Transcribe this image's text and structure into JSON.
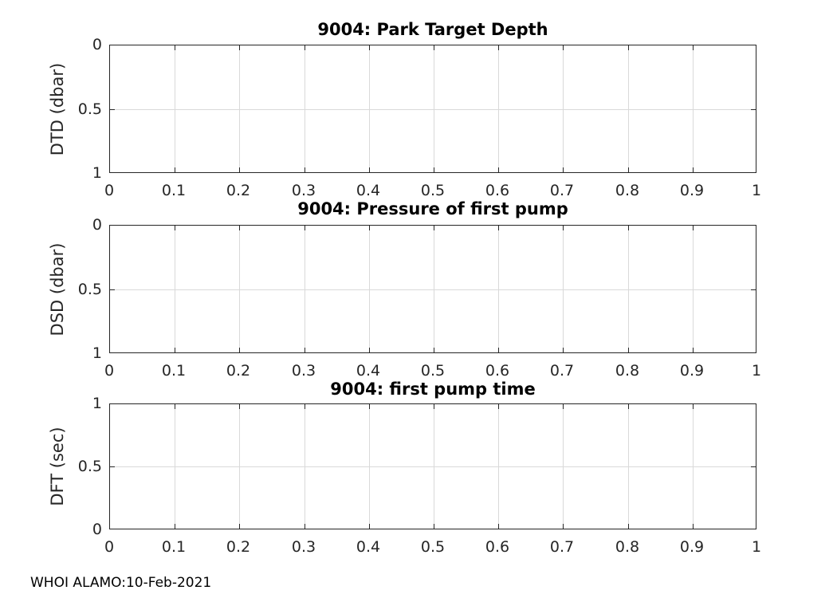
{
  "figure": {
    "background": "#ffffff",
    "footer": "WHOI ALAMO:10-Feb-2021"
  },
  "colors": {
    "axis": "#262626",
    "grid": "#d9d9d9",
    "tick_label": "#262626",
    "title": "#000000"
  },
  "chart_data": [
    {
      "type": "line",
      "title": "9004: Park Target Depth",
      "xlabel": "",
      "ylabel": "DTD (dbar)",
      "xlim": [
        0,
        1
      ],
      "ylim": [
        0,
        1
      ],
      "y_direction": "reverse",
      "xticks": [
        0,
        0.1,
        0.2,
        0.3,
        0.4,
        0.5,
        0.6,
        0.7,
        0.8,
        0.9,
        1
      ],
      "xtick_labels": [
        "0",
        "0.1",
        "0.2",
        "0.3",
        "0.4",
        "0.5",
        "0.6",
        "0.7",
        "0.8",
        "0.9",
        "1"
      ],
      "yticks": [
        0,
        0.5,
        1
      ],
      "ytick_labels": [
        "0",
        "0.5",
        "1"
      ],
      "grid": true,
      "legend": null,
      "series": []
    },
    {
      "type": "line",
      "title": "9004: Pressure of first pump",
      "xlabel": "",
      "ylabel": "DSD (dbar)",
      "xlim": [
        0,
        1
      ],
      "ylim": [
        0,
        1
      ],
      "y_direction": "reverse",
      "xticks": [
        0,
        0.1,
        0.2,
        0.3,
        0.4,
        0.5,
        0.6,
        0.7,
        0.8,
        0.9,
        1
      ],
      "xtick_labels": [
        "0",
        "0.1",
        "0.2",
        "0.3",
        "0.4",
        "0.5",
        "0.6",
        "0.7",
        "0.8",
        "0.9",
        "1"
      ],
      "yticks": [
        0,
        0.5,
        1
      ],
      "ytick_labels": [
        "0",
        "0.5",
        "1"
      ],
      "grid": true,
      "legend": null,
      "series": []
    },
    {
      "type": "line",
      "title": "9004: first pump time",
      "xlabel": "",
      "ylabel": "DFT (sec)",
      "xlim": [
        0,
        1
      ],
      "ylim": [
        0,
        1
      ],
      "y_direction": "normal",
      "xticks": [
        0,
        0.1,
        0.2,
        0.3,
        0.4,
        0.5,
        0.6,
        0.7,
        0.8,
        0.9,
        1
      ],
      "xtick_labels": [
        "0",
        "0.1",
        "0.2",
        "0.3",
        "0.4",
        "0.5",
        "0.6",
        "0.7",
        "0.8",
        "0.9",
        "1"
      ],
      "yticks": [
        0,
        0.5,
        1
      ],
      "ytick_labels": [
        "0",
        "0.5",
        "1"
      ],
      "grid": true,
      "legend": null,
      "series": []
    }
  ]
}
